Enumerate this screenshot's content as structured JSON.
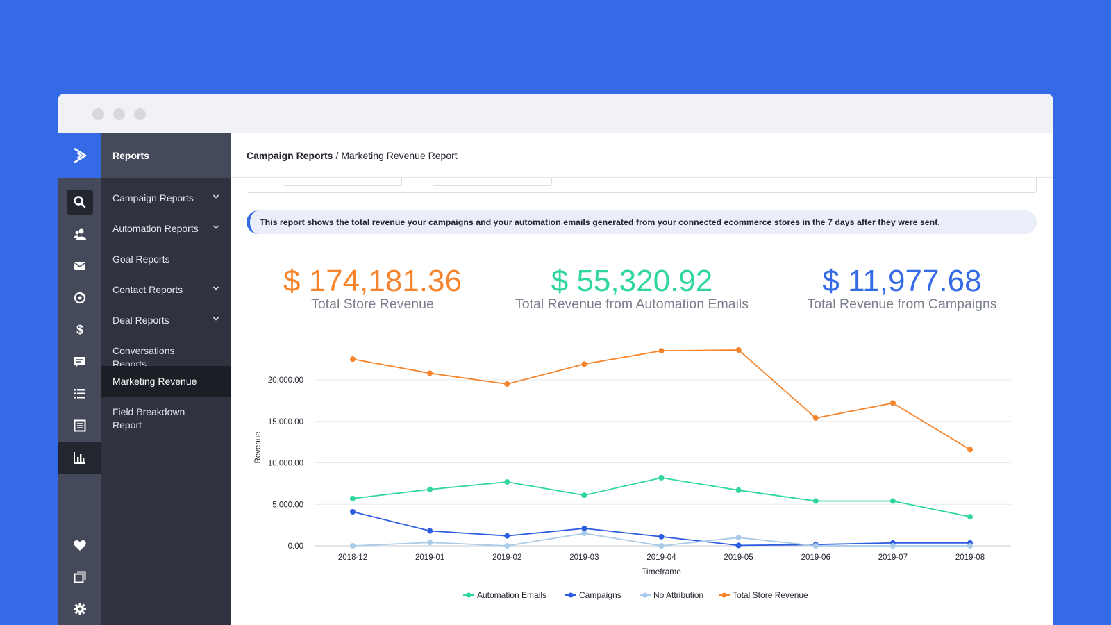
{
  "breadcrumb": {
    "parent": "Campaign Reports",
    "separator": "/",
    "current": "Marketing Revenue Report"
  },
  "subnav": {
    "title": "Reports",
    "items": [
      {
        "label": "Campaign Reports",
        "has_chevron": true,
        "active": false
      },
      {
        "label": "Automation Reports",
        "has_chevron": true,
        "active": false
      },
      {
        "label": "Goal Reports",
        "has_chevron": false,
        "active": false
      },
      {
        "label": "Contact Reports",
        "has_chevron": true,
        "active": false
      },
      {
        "label": "Deal Reports",
        "has_chevron": true,
        "active": false
      },
      {
        "label": "Conversations Reports",
        "has_chevron": false,
        "active": false
      },
      {
        "label": "Marketing Revenue",
        "has_chevron": false,
        "active": true
      },
      {
        "label": "Field Breakdown Report",
        "has_chevron": false,
        "active": false
      }
    ]
  },
  "rail": {
    "logo_icon": "activecampaign-chevron-logo",
    "icons": [
      "search-icon",
      "contacts-icon",
      "email-icon",
      "automations-icon",
      "dollar-icon",
      "conversations-icon",
      "lists-icon",
      "forms-icon",
      "reports-icon"
    ],
    "bottom_icons": [
      "heart-icon",
      "pages-icon",
      "settings-icon"
    ]
  },
  "banner": {
    "text": "This report shows the total revenue your campaigns and your automation emails generated from your connected ecommerce stores in the 7 days after they were sent."
  },
  "stats": [
    {
      "amount": "$ 174,181.36",
      "label": "Total Store Revenue",
      "color": "#f5842c"
    },
    {
      "amount": "$ 55,320.92",
      "label": "Total Revenue from Automation Emails",
      "color": "#2fd6a0"
    },
    {
      "amount": "$ 11,977.68",
      "label": "Total Revenue from Campaigns",
      "color": "#356ae6"
    }
  ],
  "chart_data": {
    "type": "line",
    "xlabel": "Timeframe",
    "ylabel": "Revenue",
    "categories": [
      "2018-12",
      "2019-01",
      "2019-02",
      "2019-03",
      "2019-04",
      "2019-05",
      "2019-06",
      "2019-07",
      "2019-08"
    ],
    "ylim": [
      0,
      20000
    ],
    "yticks": [
      "0.00",
      "5,000.00",
      "10,000.00",
      "15,000.00",
      "20,000.00"
    ],
    "grid": true,
    "legend": "bottom",
    "series": [
      {
        "name": "Automation Emails",
        "color": "#2fd6a0",
        "values": [
          5700,
          6800,
          7700,
          6100,
          8200,
          6700,
          5400,
          5400,
          3500
        ]
      },
      {
        "name": "Campaigns",
        "color": "#2c5ce0",
        "values": [
          4100,
          1800,
          1200,
          2100,
          1100,
          50,
          150,
          350,
          350
        ]
      },
      {
        "name": "No Attribution",
        "color": "#a9cae8",
        "values": [
          0,
          400,
          0,
          1500,
          0,
          1000,
          0,
          0,
          0
        ]
      },
      {
        "name": "Total Store Revenue",
        "color": "#f5842c",
        "values": [
          22500,
          20800,
          19500,
          21900,
          23500,
          23600,
          15400,
          17200,
          11600
        ]
      }
    ]
  }
}
